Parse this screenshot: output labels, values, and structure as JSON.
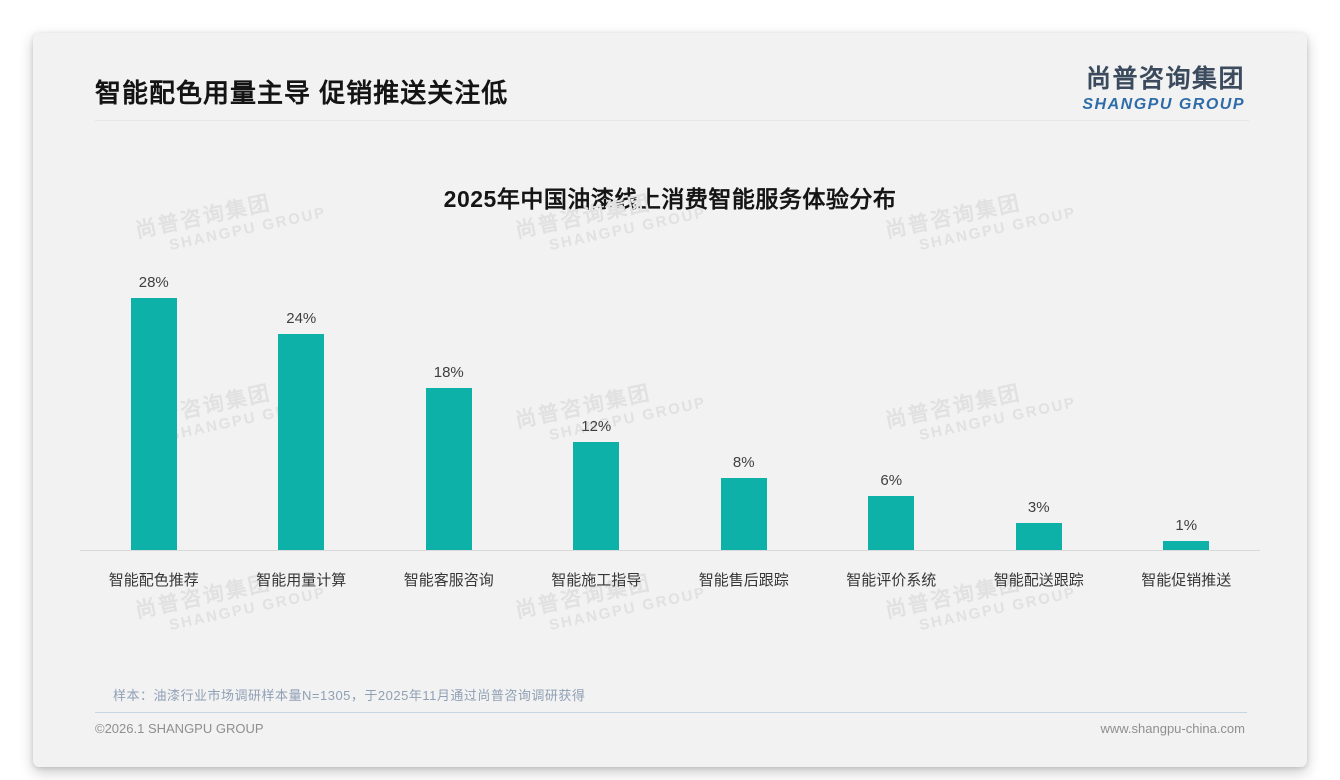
{
  "page": {
    "header_title": "智能配色用量主导 促销推送关注低",
    "logo": {
      "cn": "尚普咨询集团",
      "en": "SHANGPU GROUP"
    },
    "watermark": {
      "cn": "尚普咨询集团",
      "en": "SHANGPU GROUP"
    },
    "note": "样本：油漆行业市场调研样本量N=1305，于2025年11月通过尚普咨询调研获得",
    "footer_left": "©2026.1 SHANGPU GROUP",
    "footer_right": "www.shangpu-china.com"
  },
  "colors": {
    "bar": "#0db1a7",
    "logo_cn": "#3b4a5c",
    "logo_en": "#2e6ca8",
    "card_bg": "#f2f2f3"
  },
  "chart_data": {
    "type": "bar",
    "title": "2025年中国油漆线上消费智能服务体验分布",
    "categories": [
      "智能配色推荐",
      "智能用量计算",
      "智能客服咨询",
      "智能施工指导",
      "智能售后跟踪",
      "智能评价系统",
      "智能配送跟踪",
      "智能促销推送"
    ],
    "values": [
      28,
      24,
      18,
      12,
      8,
      6,
      3,
      1
    ],
    "value_labels": [
      "28%",
      "24%",
      "18%",
      "12%",
      "8%",
      "6%",
      "3%",
      "1%"
    ],
    "xlabel": "",
    "ylabel": "",
    "ylim": [
      0,
      30
    ],
    "grid": false,
    "legend": false,
    "bar_color": "#0db1a7"
  }
}
